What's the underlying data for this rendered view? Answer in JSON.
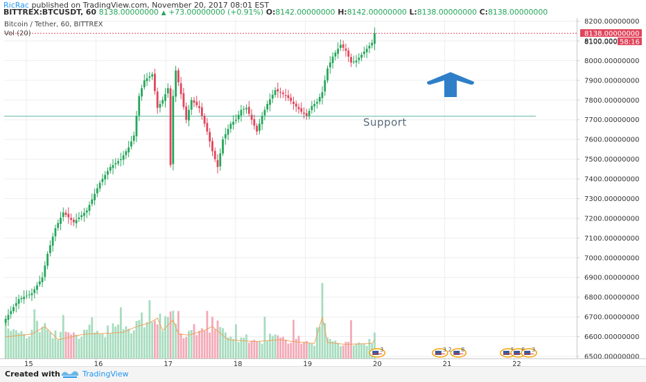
{
  "header": {
    "author": "RicRac",
    "published": "published on TradingView.com, November 20, 2017 08:01 EST",
    "symbol": "BITTREX:BTCUSDT, 60",
    "last": "8138.00000000",
    "change": "+73.00000000 (+0.91%)",
    "o_label": "O:",
    "o_value": "8142.00000000",
    "h_label": "H:",
    "h_value": "8142.00000000",
    "l_label": "L:",
    "l_value": "8138.00000000",
    "c_label": "C:",
    "c_value": "8138.00000000"
  },
  "legend": {
    "series": "Bitcoin / Tether, 60, BITTREX",
    "volume": "Vol (20)"
  },
  "footer": {
    "created_with": "Created with",
    "brand": "TradingView"
  },
  "colors": {
    "up": "#26a65b",
    "down": "#e0455b",
    "up_volume": "#a6dcbd",
    "down_volume": "#f3a9b6",
    "ma": "#f0a05a",
    "support": "#5fb8a4",
    "arrow": "#2f7fc8"
  },
  "chart_data": {
    "type": "candlestick",
    "ylim": [
      6500,
      8230
    ],
    "y_ticks": [
      "8200.00000000",
      "8100.00000000",
      "8000.00000000",
      "7900.00000000",
      "7800.00000000",
      "7700.00000000",
      "7600.00000000",
      "7500.00000000",
      "7400.00000000",
      "7300.00000000",
      "7200.00000000",
      "7100.00000000",
      "7000.00000000",
      "6900.00000000",
      "6800.00000000",
      "6700.00000000",
      "6600.00000000",
      "6500.00000000"
    ],
    "x_ticks": [
      "15",
      "16",
      "17",
      "18",
      "19",
      "20",
      "21",
      "22"
    ],
    "last_price_label": "8138.00000000",
    "second_label_value": "8100.000",
    "countdown": "58:16",
    "support": {
      "price": 7718,
      "label": "Support"
    },
    "key_points": [
      [
        0,
        6690
      ],
      [
        5,
        6790
      ],
      [
        10,
        6820
      ],
      [
        14,
        6900
      ],
      [
        16,
        7020
      ],
      [
        19,
        7150
      ],
      [
        22,
        7230
      ],
      [
        26,
        7180
      ],
      [
        31,
        7240
      ],
      [
        36,
        7380
      ],
      [
        40,
        7460
      ],
      [
        44,
        7500
      ],
      [
        47,
        7560
      ],
      [
        49,
        7620
      ],
      [
        51,
        7820
      ],
      [
        53,
        7900
      ],
      [
        56,
        7930
      ],
      [
        58,
        7760
      ],
      [
        60,
        7800
      ],
      [
        62,
        7860
      ],
      [
        63,
        7470
      ],
      [
        64,
        7820
      ],
      [
        65,
        7950
      ],
      [
        67,
        7830
      ],
      [
        69,
        7700
      ],
      [
        71,
        7800
      ],
      [
        74,
        7760
      ],
      [
        77,
        7640
      ],
      [
        79,
        7540
      ],
      [
        81,
        7460
      ],
      [
        83,
        7600
      ],
      [
        86,
        7680
      ],
      [
        88,
        7700
      ],
      [
        90,
        7750
      ],
      [
        92,
        7760
      ],
      [
        94,
        7700
      ],
      [
        96,
        7640
      ],
      [
        98,
        7720
      ],
      [
        100,
        7780
      ],
      [
        103,
        7850
      ],
      [
        106,
        7830
      ],
      [
        108,
        7810
      ],
      [
        110,
        7780
      ],
      [
        113,
        7740
      ],
      [
        115,
        7720
      ],
      [
        117,
        7770
      ],
      [
        119,
        7790
      ],
      [
        121,
        7840
      ],
      [
        123,
        7960
      ],
      [
        125,
        8020
      ],
      [
        127,
        8060
      ],
      [
        128,
        8080
      ],
      [
        130,
        8050
      ],
      [
        132,
        7990
      ],
      [
        134,
        8000
      ],
      [
        136,
        8030
      ],
      [
        138,
        8060
      ],
      [
        140,
        8090
      ],
      [
        141,
        8138
      ]
    ],
    "noise": [
      0.3,
      -0.8,
      0.6,
      -0.2,
      0.9,
      -0.5,
      0.1,
      -0.9,
      0.7,
      0.4,
      -0.6,
      0.2,
      -0.3,
      0.8,
      -0.7,
      0.5,
      -0.1,
      0.6,
      -0.4,
      0.3
    ],
    "volume_key_points": [
      [
        0,
        230
      ],
      [
        10,
        260
      ],
      [
        15,
        340
      ],
      [
        20,
        200
      ],
      [
        30,
        260
      ],
      [
        40,
        270
      ],
      [
        45,
        280
      ],
      [
        50,
        340
      ],
      [
        55,
        380
      ],
      [
        58,
        430
      ],
      [
        60,
        300
      ],
      [
        64,
        410
      ],
      [
        66,
        260
      ],
      [
        70,
        250
      ],
      [
        75,
        290
      ],
      [
        79,
        340
      ],
      [
        85,
        200
      ],
      [
        95,
        180
      ],
      [
        105,
        200
      ],
      [
        110,
        180
      ],
      [
        118,
        160
      ],
      [
        121,
        440
      ],
      [
        123,
        170
      ],
      [
        130,
        150
      ],
      [
        140,
        160
      ],
      [
        141,
        200
      ]
    ],
    "volume_max": 900,
    "events": [
      {
        "x": 142,
        "badge": "3"
      },
      {
        "x": 166,
        "badge": "3 2"
      },
      {
        "x": 173,
        "badge": "8"
      },
      {
        "x": 192,
        "badge": "5"
      },
      {
        "x": 196,
        "badge": "8"
      },
      {
        "x": 200,
        "badge": "3"
      }
    ]
  }
}
